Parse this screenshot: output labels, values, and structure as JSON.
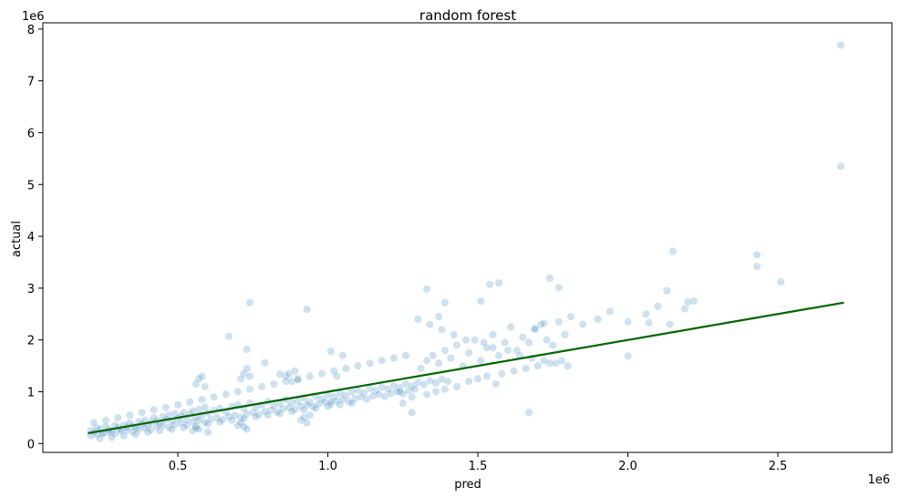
{
  "chart_data": {
    "type": "scatter",
    "title": "random forest",
    "xlabel": "pred",
    "ylabel": "actual",
    "x_multiplier_label": "1e6",
    "y_multiplier_label": "1e6",
    "xlim": [
      0.05,
      2.88
    ],
    "ylim": [
      -0.17,
      8.12
    ],
    "xticks": [
      0.5,
      1.0,
      1.5,
      2.0,
      2.5
    ],
    "xtick_labels": [
      "0.5",
      "1.0",
      "1.5",
      "2.0",
      "2.5"
    ],
    "yticks": [
      0,
      1,
      2,
      3,
      4,
      5,
      6,
      7,
      8
    ],
    "ytick_labels": [
      "0",
      "1",
      "2",
      "3",
      "4",
      "5",
      "6",
      "7",
      "8"
    ],
    "grid": false,
    "legend": "none",
    "colors": {
      "points": "#1f77b4",
      "fit_line": "#006400"
    },
    "series": [
      {
        "kind": "scatter",
        "x": [
          0.21,
          0.22,
          0.23,
          0.24,
          0.25,
          0.26,
          0.27,
          0.28,
          0.29,
          0.3,
          0.31,
          0.32,
          0.33,
          0.34,
          0.35,
          0.36,
          0.37,
          0.38,
          0.39,
          0.4,
          0.41,
          0.42,
          0.43,
          0.44,
          0.45,
          0.46,
          0.47,
          0.48,
          0.49,
          0.5,
          0.51,
          0.52,
          0.53,
          0.54,
          0.55,
          0.56,
          0.57,
          0.58,
          0.59,
          0.6,
          0.62,
          0.64,
          0.66,
          0.68,
          0.7,
          0.72,
          0.74,
          0.76,
          0.78,
          0.8,
          0.82,
          0.84,
          0.86,
          0.88,
          0.9,
          0.92,
          0.94,
          0.96,
          0.98,
          1.0,
          1.02,
          1.04,
          1.06,
          1.08,
          1.1,
          1.12,
          1.14,
          1.16,
          1.18,
          1.2,
          1.22,
          1.24,
          1.26,
          1.28,
          1.3,
          1.32,
          1.34,
          1.36,
          1.38,
          1.4,
          0.21,
          0.23,
          0.25,
          0.27,
          0.29,
          0.31,
          0.33,
          0.35,
          0.37,
          0.39,
          0.41,
          0.43,
          0.45,
          0.47,
          0.49,
          0.51,
          0.53,
          0.55,
          0.57,
          0.59,
          0.61,
          0.63,
          0.65,
          0.67,
          0.69,
          0.71,
          0.73,
          0.75,
          0.77,
          0.79,
          0.81,
          0.83,
          0.85,
          0.87,
          0.89,
          0.91,
          0.93,
          0.95,
          0.97,
          0.99,
          1.01,
          1.03,
          1.05,
          1.07,
          1.09,
          1.11,
          1.13,
          1.15,
          1.17,
          1.19,
          1.21,
          1.23,
          1.25,
          1.27,
          1.29,
          0.22,
          0.26,
          0.3,
          0.34,
          0.38,
          0.42,
          0.46,
          0.5,
          0.54,
          0.58,
          0.62,
          0.66,
          0.7,
          0.74,
          0.78,
          0.82,
          0.86,
          0.9,
          0.94,
          0.98,
          1.02,
          1.06,
          1.1,
          1.14,
          1.18,
          1.22,
          1.26,
          0.24,
          0.28,
          0.32,
          0.36,
          0.4,
          0.44,
          0.48,
          0.52,
          0.56,
          0.6,
          0.64,
          0.68,
          0.72,
          0.76,
          0.8,
          0.84,
          0.88,
          0.92,
          0.96,
          1.0,
          1.04,
          1.08,
          0.71,
          0.72,
          0.73,
          0.74,
          0.7,
          0.71,
          0.72,
          0.73,
          0.56,
          0.57,
          0.58,
          0.59,
          0.55,
          0.56,
          0.57,
          0.6,
          0.86,
          0.87,
          0.88,
          0.89,
          0.91,
          0.92,
          0.93,
          0.94,
          1.31,
          1.33,
          1.35,
          1.37,
          1.39,
          1.41,
          1.43,
          1.45,
          1.47,
          1.49,
          1.51,
          1.53,
          1.55,
          1.57,
          1.59,
          1.61,
          1.63,
          1.65,
          1.67,
          1.69,
          1.71,
          1.73,
          1.75,
          1.77,
          1.79,
          1.81,
          1.85,
          1.9,
          1.94,
          2.0,
          2.06,
          2.1,
          2.14,
          2.19,
          2.22,
          1.33,
          1.36,
          1.39,
          1.43,
          1.47,
          1.5,
          1.53,
          1.56,
          1.58,
          1.62,
          1.66,
          1.7,
          1.74,
          1.78,
          1.3,
          1.34,
          1.38,
          1.42,
          1.46,
          1.52,
          1.55,
          1.6,
          1.64,
          1.68,
          1.72,
          1.76,
          1.8,
          0.74,
          0.73,
          0.67,
          0.93,
          1.01,
          1.05,
          0.79,
          0.84,
          0.9,
          1.33,
          1.37,
          1.39,
          1.54,
          1.57,
          1.51,
          1.74,
          1.77,
          1.69,
          1.72,
          2.0,
          2.07,
          2.13,
          2.15,
          2.2,
          2.43,
          2.43,
          2.51,
          2.71,
          2.71,
          1.67,
          1.01,
          1.03,
          1.28,
          1.28,
          1.24,
          1.25
        ],
        "y": [
          0.25,
          0.22,
          0.3,
          0.28,
          0.2,
          0.33,
          0.27,
          0.24,
          0.35,
          0.31,
          0.28,
          0.36,
          0.32,
          0.4,
          0.34,
          0.3,
          0.42,
          0.38,
          0.45,
          0.36,
          0.41,
          0.5,
          0.44,
          0.39,
          0.52,
          0.47,
          0.55,
          0.43,
          0.58,
          0.49,
          0.53,
          0.6,
          0.46,
          0.57,
          0.63,
          0.51,
          0.66,
          0.55,
          0.7,
          0.59,
          0.64,
          0.68,
          0.61,
          0.72,
          0.75,
          0.67,
          0.78,
          0.7,
          0.74,
          0.81,
          0.73,
          0.77,
          0.85,
          0.79,
          0.82,
          0.88,
          0.8,
          0.91,
          0.86,
          0.94,
          0.9,
          0.97,
          0.93,
          1.0,
          1.03,
          0.98,
          1.06,
          1.02,
          1.09,
          1.05,
          1.12,
          1.08,
          1.15,
          1.11,
          1.18,
          1.14,
          1.21,
          1.17,
          1.24,
          1.2,
          0.15,
          0.18,
          0.2,
          0.22,
          0.19,
          0.24,
          0.26,
          0.23,
          0.28,
          0.3,
          0.27,
          0.33,
          0.35,
          0.31,
          0.37,
          0.4,
          0.36,
          0.42,
          0.45,
          0.41,
          0.47,
          0.5,
          0.46,
          0.52,
          0.55,
          0.51,
          0.57,
          0.6,
          0.56,
          0.62,
          0.65,
          0.61,
          0.67,
          0.7,
          0.66,
          0.72,
          0.75,
          0.71,
          0.77,
          0.8,
          0.76,
          0.82,
          0.85,
          0.81,
          0.87,
          0.9,
          0.86,
          0.92,
          0.95,
          0.91,
          0.97,
          1.0,
          0.96,
          1.02,
          1.05,
          0.4,
          0.45,
          0.5,
          0.55,
          0.6,
          0.65,
          0.7,
          0.75,
          0.8,
          0.85,
          0.9,
          0.95,
          1.0,
          1.05,
          1.1,
          1.15,
          1.2,
          1.25,
          1.3,
          1.35,
          1.4,
          1.45,
          1.5,
          1.55,
          1.6,
          1.65,
          1.7,
          0.1,
          0.12,
          0.15,
          0.18,
          0.22,
          0.25,
          0.28,
          0.31,
          0.34,
          0.38,
          0.42,
          0.45,
          0.48,
          0.52,
          0.55,
          0.58,
          0.62,
          0.65,
          0.68,
          0.72,
          0.75,
          0.78,
          1.25,
          1.35,
          1.45,
          1.3,
          0.35,
          0.4,
          0.32,
          0.28,
          1.15,
          1.25,
          1.3,
          1.1,
          0.25,
          0.3,
          0.28,
          0.22,
          1.3,
          1.35,
          1.2,
          1.4,
          0.45,
          0.5,
          0.4,
          0.55,
          1.45,
          1.6,
          1.7,
          1.55,
          1.8,
          1.65,
          1.9,
          1.5,
          1.75,
          2.0,
          1.6,
          1.85,
          2.1,
          1.7,
          1.95,
          2.25,
          1.8,
          2.05,
          1.95,
          2.2,
          2.3,
          2.0,
          1.9,
          2.35,
          2.1,
          2.45,
          2.3,
          2.4,
          2.55,
          2.35,
          2.5,
          2.65,
          2.3,
          2.6,
          2.75,
          0.95,
          1.0,
          1.05,
          1.1,
          1.2,
          1.25,
          1.3,
          1.15,
          1.35,
          1.4,
          1.45,
          1.5,
          1.55,
          1.6,
          2.4,
          2.3,
          2.2,
          2.1,
          2.0,
          1.95,
          1.85,
          1.8,
          1.7,
          1.65,
          1.6,
          1.55,
          1.5,
          2.72,
          1.82,
          2.07,
          2.59,
          1.78,
          1.7,
          1.56,
          1.34,
          1.23,
          2.98,
          2.45,
          2.72,
          3.07,
          3.1,
          2.75,
          3.19,
          3.01,
          2.22,
          2.32,
          1.69,
          2.33,
          2.95,
          3.71,
          2.73,
          3.64,
          3.42,
          3.12,
          7.69,
          5.35,
          0.6,
          0.8,
          1.3,
          0.6,
          0.9,
          1.0,
          0.78
        ]
      },
      {
        "kind": "line",
        "name": "",
        "x": [
          0.2,
          2.72
        ],
        "y": [
          0.2,
          2.72
        ]
      }
    ]
  }
}
